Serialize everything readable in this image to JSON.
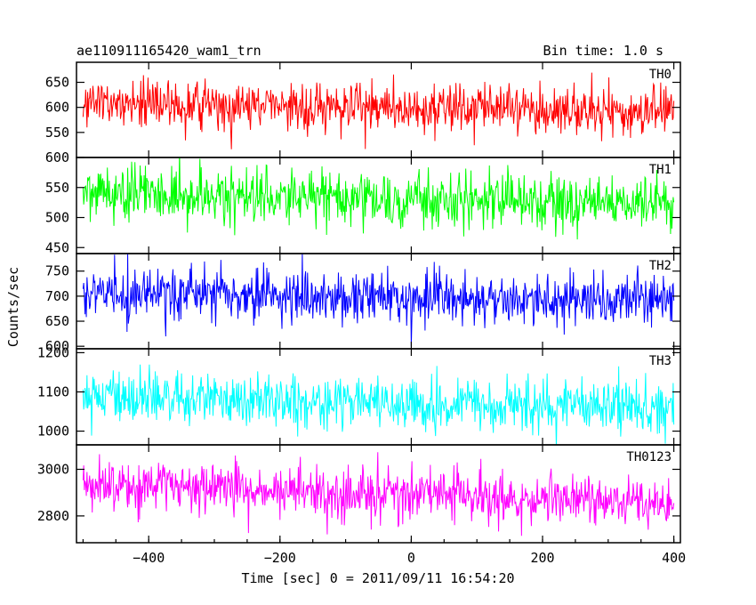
{
  "header": {
    "title": "ae110911165420_wam1_trn",
    "bin_time": "Bin time: 1.0 s"
  },
  "chart_data": {
    "type": "line",
    "xlabel": "Time [sec] 0 = 2011/09/11 16:54:20",
    "ylabel": "Counts/sec",
    "xlim": [
      -510,
      410
    ],
    "x_ticks": [
      -400,
      -200,
      0,
      200,
      400
    ],
    "x_tick_labels": [
      "−400",
      "−200",
      "0",
      "200",
      "400"
    ],
    "x_range": [
      -500,
      400
    ],
    "bin_time_s": 1.0,
    "grid": false,
    "panels": [
      {
        "name": "TH0",
        "color": "#ff0000",
        "ylim": [
          500,
          690
        ],
        "y_ticks": [
          550,
          600,
          650
        ],
        "y_tick_labels": [
          "550",
          "600",
          "650"
        ],
        "mean_start": 608,
        "mean_end": 590,
        "noise_sd": 24
      },
      {
        "name": "TH1",
        "color": "#00ff00",
        "ylim": [
          440,
          600
        ],
        "y_ticks": [
          450,
          500,
          550,
          600
        ],
        "y_tick_labels": [
          "450",
          "500",
          "550",
          "600"
        ],
        "mean_start": 540,
        "mean_end": 522,
        "noise_sd": 23
      },
      {
        "name": "TH2",
        "color": "#0000ff",
        "ylim": [
          595,
          785
        ],
        "y_ticks": [
          600,
          650,
          700,
          750
        ],
        "y_tick_labels": [
          "600",
          "650",
          "700",
          "750"
        ],
        "mean_start": 703,
        "mean_end": 688,
        "noise_sd": 26
      },
      {
        "name": "TH3",
        "color": "#00ffff",
        "ylim": [
          965,
          1210
        ],
        "y_ticks": [
          1000,
          1100,
          1200
        ],
        "y_tick_labels": [
          "1000",
          "1100",
          "1200"
        ],
        "mean_start": 1085,
        "mean_end": 1060,
        "noise_sd": 33
      },
      {
        "name": "TH0123",
        "color": "#ff00ff",
        "ylim": [
          2685,
          3105
        ],
        "y_ticks": [
          2800,
          3000
        ],
        "y_tick_labels": [
          "2800",
          "3000"
        ],
        "mean_start": 2935,
        "mean_end": 2855,
        "noise_sd": 55
      }
    ]
  }
}
